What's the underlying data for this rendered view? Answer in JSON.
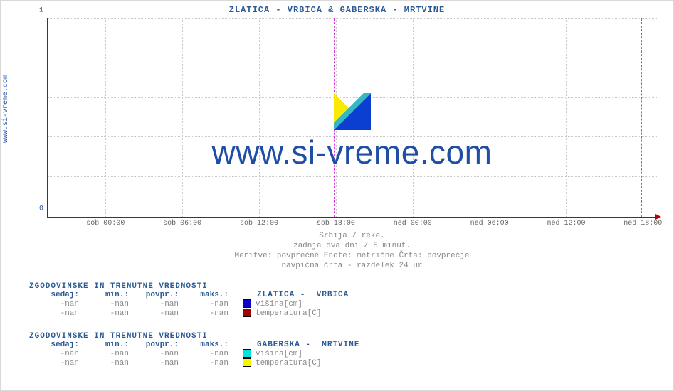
{
  "title": "ZLATICA -  VRBICA &  GABERSKA -  MRTVINE",
  "sidebar_url": "www.si-vreme.com",
  "chart": {
    "type": "line",
    "ylim": [
      0,
      1
    ],
    "yticks": [
      0,
      1
    ],
    "xticks": [
      "sob 00:00",
      "sob 06:00",
      "sob 12:00",
      "sob 18:00",
      "ned 00:00",
      "ned 06:00",
      "ned 12:00",
      "ned 18:00"
    ],
    "xtick_positions_pct": [
      9.5,
      22.1,
      34.7,
      47.3,
      59.9,
      72.5,
      85.1,
      97.7
    ],
    "marker_positions_pct": [
      47.0,
      97.4
    ],
    "hgrid_pct": [
      0,
      20,
      40,
      60,
      80,
      100
    ],
    "axis_color": "#c00000",
    "grid_color": "#c9c9c9",
    "marker_color": "#d63ad6",
    "tick_text_color": "#666666",
    "ytick_text_color": "#1f4fa5",
    "background_color": "#ffffff"
  },
  "watermark": {
    "text": "www.si-vreme.com",
    "text_color": "#1f4fa5",
    "logo_colors": {
      "yellow": "#fbea00",
      "blue": "#0b3fd1",
      "cyan": "#35b8c0"
    }
  },
  "captions": {
    "line1": "Srbija / reke.",
    "line2": "zadnja dva dni / 5 minut.",
    "line3": "Meritve: povprečne  Enote: metrične  Črta: povprečje",
    "line4": "navpična črta - razdelek 24 ur"
  },
  "stats_header": "ZGODOVINSKE IN TRENUTNE VREDNOSTI",
  "stats_columns": {
    "c1": "sedaj:",
    "c2": "min.:",
    "c3": "povpr.:",
    "c4": "maks.:"
  },
  "groups": [
    {
      "name": "ZLATICA -  VRBICA",
      "rows": [
        {
          "sedaj": "-nan",
          "min": "-nan",
          "povpr": "-nan",
          "maks": "-nan",
          "swatch": "#0b00c8",
          "label": "višina[cm]"
        },
        {
          "sedaj": "-nan",
          "min": "-nan",
          "povpr": "-nan",
          "maks": "-nan",
          "swatch": "#a30000",
          "label": "temperatura[C]"
        }
      ]
    },
    {
      "name": "GABERSKA -  MRTVINE",
      "rows": [
        {
          "sedaj": "-nan",
          "min": "-nan",
          "povpr": "-nan",
          "maks": "-nan",
          "swatch": "#00e3e3",
          "label": "višina[cm]"
        },
        {
          "sedaj": "-nan",
          "min": "-nan",
          "povpr": "-nan",
          "maks": "-nan",
          "swatch": "#f7f700",
          "label": "temperatura[C]"
        }
      ]
    }
  ]
}
